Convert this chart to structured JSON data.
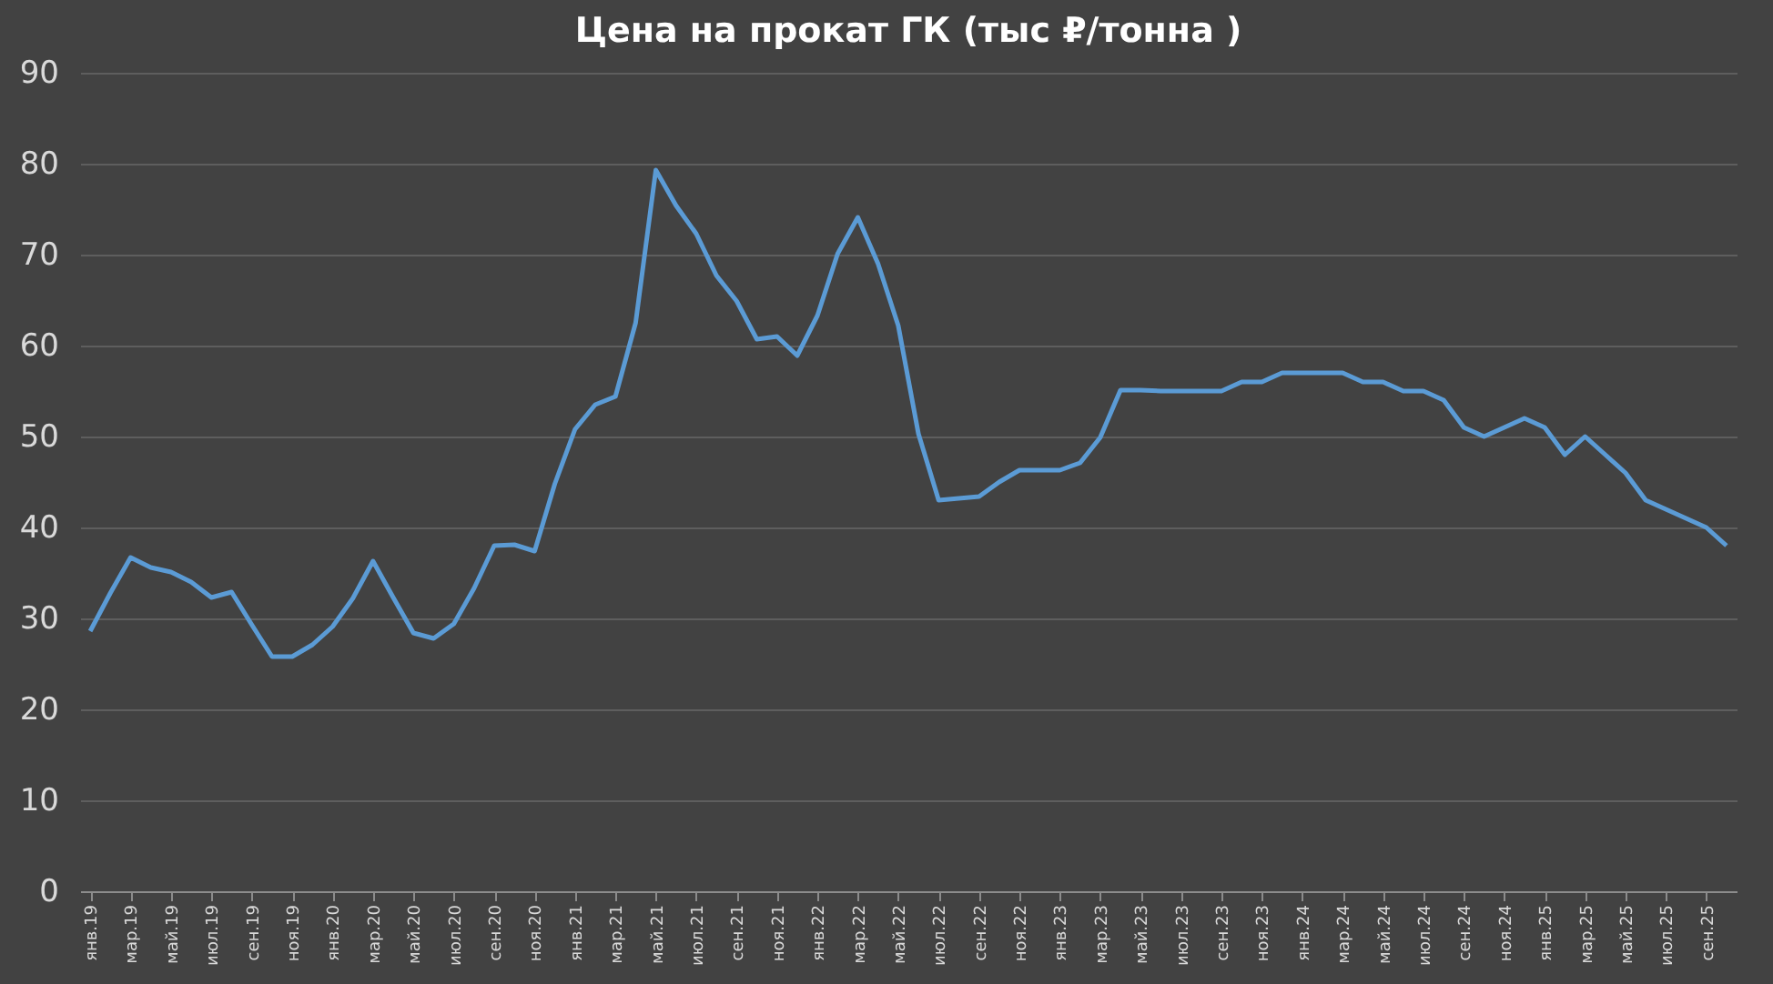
{
  "chart_data": {
    "type": "line",
    "title": "Цена на прокат ГК (тыс ₽/тонна )",
    "categories": [
      "янв.19",
      null,
      "мар.19",
      null,
      "май.19",
      null,
      "июл.19",
      null,
      "сен.19",
      null,
      "ноя.19",
      null,
      "янв.20",
      null,
      "мар.20",
      null,
      "май.20",
      null,
      "июл.20",
      null,
      "сен.20",
      null,
      "ноя.20",
      null,
      "янв.21",
      null,
      "мар.21",
      null,
      "май.21",
      null,
      "июл.21",
      null,
      "сен.21",
      null,
      "ноя.21",
      null,
      "янв.22",
      null,
      "мар.22",
      null,
      "май.22",
      null,
      "июл.22",
      null,
      "сен.22",
      null,
      "ноя.22",
      null,
      "янв.23",
      null,
      "мар.23",
      null,
      "май.23",
      null,
      "июл.23",
      null,
      "сен.23",
      null,
      "ноя.23",
      null,
      "янв.24",
      null,
      "мар.24",
      null,
      "май.24",
      null,
      "июл.24",
      null,
      "сен.24",
      null,
      "ноя.24",
      null,
      "янв.25",
      null,
      "мар.25",
      null,
      "май.25",
      null,
      "июл.25",
      null,
      "сен.25",
      null
    ],
    "series": [
      {
        "color": "#5b9bd5",
        "values": [
          28.6,
          32.8,
          36.7,
          35.6,
          35.1,
          34.0,
          32.3,
          32.9,
          29.3,
          25.8,
          25.8,
          27.1,
          29.1,
          32.2,
          36.3,
          32.3,
          28.4,
          27.8,
          29.4,
          33.3,
          38.0,
          38.1,
          37.4,
          44.8,
          50.8,
          53.5,
          54.4,
          62.5,
          79.3,
          75.4,
          72.3,
          67.7,
          64.9,
          60.7,
          61.0,
          58.9,
          63.3,
          70.1,
          74.1,
          69.0,
          62.2,
          50.3,
          43.0,
          43.2,
          43.4,
          45.0,
          46.3,
          46.3,
          46.3,
          47.1,
          49.9,
          55.1,
          55.1,
          55,
          55,
          55,
          55,
          56,
          56,
          57,
          57,
          57,
          57,
          56,
          56,
          55,
          55,
          54,
          51,
          50,
          51,
          52,
          51,
          48,
          50,
          48,
          46,
          43,
          42,
          41,
          40,
          38
        ]
      }
    ],
    "ylim": [
      0,
      90
    ],
    "yticks": [
      0,
      10,
      20,
      30,
      40,
      50,
      60,
      70,
      80,
      90
    ],
    "grid": "y",
    "marker": "none",
    "line_style": "solid"
  }
}
